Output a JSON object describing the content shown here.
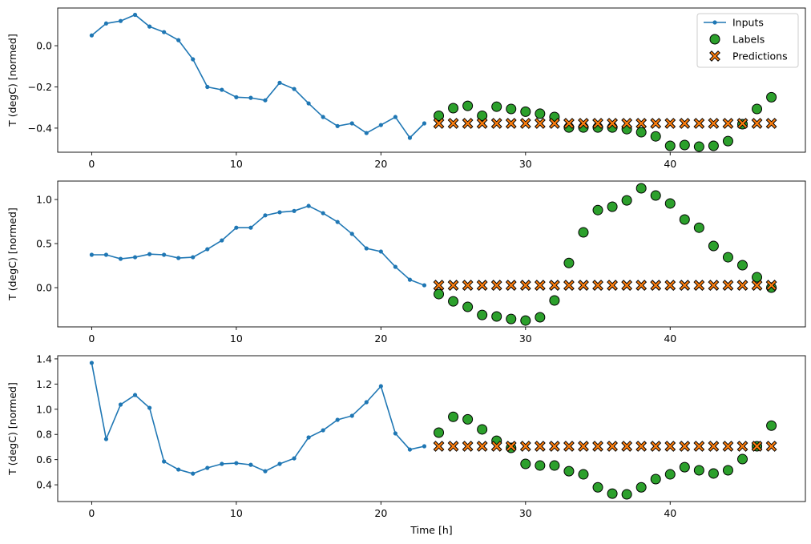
{
  "colors": {
    "inputs": "#1f77b4",
    "labels": "#2ca02c",
    "predictions": "#ff7f0e",
    "marker_edge": "#000000"
  },
  "legend": {
    "placement": "top-right",
    "entries": [
      "Inputs",
      "Labels",
      "Predictions"
    ]
  },
  "chart_data": [
    {
      "type": "line",
      "ylabel": "T (degC) [normed]",
      "xlabel": "",
      "xlim": [
        -2.35,
        49.35
      ],
      "ylim": [
        -0.517,
        0.183
      ],
      "xticks": [
        0,
        10,
        20,
        30,
        40
      ],
      "yticks": [
        0.0,
        -0.2,
        -0.4
      ],
      "ytick_labels": [
        "0.0",
        "−0.2",
        "−0.4"
      ],
      "grid": false,
      "series": [
        {
          "name": "Inputs",
          "type": "line",
          "x_start": 0,
          "values": [
            0.05,
            0.108,
            0.12,
            0.15,
            0.093,
            0.066,
            0.027,
            -0.066,
            -0.2,
            -0.214,
            -0.25,
            -0.253,
            -0.265,
            -0.18,
            -0.21,
            -0.28,
            -0.346,
            -0.39,
            -0.377,
            -0.424,
            -0.385,
            -0.346,
            -0.447,
            -0.377
          ]
        },
        {
          "name": "Labels",
          "type": "scatter",
          "x_start": 24,
          "values": [
            -0.34,
            -0.303,
            -0.292,
            -0.34,
            -0.296,
            -0.307,
            -0.32,
            -0.33,
            -0.346,
            -0.397,
            -0.397,
            -0.397,
            -0.397,
            -0.405,
            -0.42,
            -0.44,
            -0.486,
            -0.482,
            -0.49,
            -0.486,
            -0.463,
            -0.381,
            -0.307,
            -0.25
          ]
        },
        {
          "name": "Predictions",
          "type": "scatter",
          "x_start": 24,
          "values": [
            -0.377,
            -0.377,
            -0.377,
            -0.377,
            -0.377,
            -0.377,
            -0.377,
            -0.377,
            -0.377,
            -0.377,
            -0.377,
            -0.377,
            -0.377,
            -0.377,
            -0.377,
            -0.377,
            -0.377,
            -0.377,
            -0.377,
            -0.377,
            -0.377,
            -0.377,
            -0.377,
            -0.377
          ]
        }
      ]
    },
    {
      "type": "line",
      "ylabel": "T (degC) [normed]",
      "xlabel": "",
      "xlim": [
        -2.35,
        49.35
      ],
      "ylim": [
        -0.445,
        1.209
      ],
      "xticks": [
        0,
        10,
        20,
        30,
        40
      ],
      "yticks": [
        1.0,
        0.5,
        0.0
      ],
      "ytick_labels": [
        "1.0",
        "0.5",
        "0.0"
      ],
      "grid": false,
      "series": [
        {
          "name": "Inputs",
          "type": "line",
          "x_start": 0,
          "values": [
            0.373,
            0.373,
            0.327,
            0.345,
            0.38,
            0.373,
            0.336,
            0.345,
            0.436,
            0.536,
            0.68,
            0.68,
            0.82,
            0.855,
            0.87,
            0.927,
            0.845,
            0.745,
            0.61,
            0.445,
            0.41,
            0.236,
            0.09,
            0.027
          ]
        },
        {
          "name": "Labels",
          "type": "scatter",
          "x_start": 24,
          "values": [
            -0.073,
            -0.155,
            -0.218,
            -0.31,
            -0.327,
            -0.355,
            -0.373,
            -0.336,
            -0.145,
            0.28,
            0.627,
            0.88,
            0.918,
            0.99,
            1.127,
            1.045,
            0.955,
            0.773,
            0.68,
            0.473,
            0.345,
            0.255,
            0.118,
            0.0
          ]
        },
        {
          "name": "Predictions",
          "type": "scatter",
          "x_start": 24,
          "values": [
            0.027,
            0.027,
            0.027,
            0.027,
            0.027,
            0.027,
            0.027,
            0.027,
            0.027,
            0.027,
            0.027,
            0.027,
            0.027,
            0.027,
            0.027,
            0.027,
            0.027,
            0.027,
            0.027,
            0.027,
            0.027,
            0.027,
            0.027,
            0.027
          ]
        }
      ]
    },
    {
      "type": "line",
      "ylabel": "T (degC) [normed]",
      "xlabel": "Time [h]",
      "xlim": [
        -2.35,
        49.35
      ],
      "ylim": [
        0.267,
        1.425
      ],
      "xticks": [
        0,
        10,
        20,
        30,
        40
      ],
      "yticks": [
        1.4,
        1.2,
        1.0,
        0.8,
        0.6,
        0.4
      ],
      "ytick_labels": [
        "1.4",
        "1.2",
        "1.0",
        "0.8",
        "0.6",
        "0.4"
      ],
      "grid": false,
      "series": [
        {
          "name": "Inputs",
          "type": "line",
          "x_start": 0,
          "values": [
            1.368,
            0.763,
            1.037,
            1.113,
            1.011,
            0.585,
            0.521,
            0.489,
            0.534,
            0.566,
            0.572,
            0.559,
            0.508,
            0.566,
            0.61,
            0.776,
            0.833,
            0.916,
            0.948,
            1.056,
            1.183,
            0.808,
            0.68,
            0.706
          ]
        },
        {
          "name": "Labels",
          "type": "scatter",
          "x_start": 24,
          "values": [
            0.814,
            0.94,
            0.92,
            0.84,
            0.75,
            0.693,
            0.566,
            0.553,
            0.553,
            0.508,
            0.483,
            0.38,
            0.33,
            0.324,
            0.38,
            0.445,
            0.483,
            0.54,
            0.515,
            0.49,
            0.515,
            0.604,
            0.706,
            0.87
          ]
        },
        {
          "name": "Predictions",
          "type": "scatter",
          "x_start": 24,
          "values": [
            0.706,
            0.706,
            0.706,
            0.706,
            0.706,
            0.706,
            0.706,
            0.706,
            0.706,
            0.706,
            0.706,
            0.706,
            0.706,
            0.706,
            0.706,
            0.706,
            0.706,
            0.706,
            0.706,
            0.706,
            0.706,
            0.706,
            0.706,
            0.706
          ]
        }
      ]
    }
  ]
}
